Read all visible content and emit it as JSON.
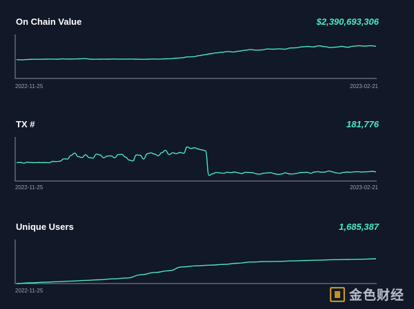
{
  "panels": [
    {
      "title": "On Chain Value",
      "value": "$2,390,693,306",
      "start_label": "2022-11-25",
      "end_label": "2023-02-21"
    },
    {
      "title": "TX #",
      "value": "181,776",
      "start_label": "2022-11-25",
      "end_label": "2023-02-21"
    },
    {
      "title": "Unique Users",
      "value": "1,685,387",
      "start_label": "2022-11-25",
      "end_label": ""
    }
  ],
  "watermark": {
    "text": "金色财经"
  },
  "colors": {
    "line": "#4ae8c6",
    "background": "#111827",
    "axis": "#8a909c"
  },
  "chart_data": [
    {
      "type": "line",
      "title": "On Chain Value",
      "x_start": "2022-11-25",
      "x_end": "2023-02-21",
      "grid": false,
      "values": [
        44,
        43.5,
        44.5,
        45,
        44.8,
        45.2,
        45.5,
        45,
        45.8,
        45.5,
        45.6,
        45.9,
        46.5,
        45.2,
        45,
        45.4,
        45.2,
        45.6,
        45.3,
        45.4,
        45.5,
        45.1,
        44.8,
        45.2,
        45.6,
        45.4,
        46,
        46.3,
        47.5,
        48.5,
        50.5,
        51,
        53.5,
        55.5,
        58,
        60,
        61.5,
        63,
        62,
        64,
        66,
        67.5,
        66.5,
        67,
        69,
        68.5,
        69.5,
        68.5,
        71.5,
        72,
        74,
        75,
        74,
        76.5,
        74.5,
        72.5,
        73.5,
        75,
        73,
        75.5,
        76.8,
        76,
        76.8,
        75.5
      ],
      "ylim": [
        0,
        100
      ]
    },
    {
      "type": "line",
      "title": "TX #",
      "x_start": "2022-11-25",
      "x_end": "2023-02-21",
      "grid": false,
      "values": [
        43,
        43.5,
        42,
        44,
        43.2,
        43,
        43.6,
        43.1,
        43.2,
        42.8,
        46,
        45.5,
        46.5,
        52,
        51.5,
        60,
        65.5,
        57,
        55,
        61.5,
        55,
        53.5,
        63,
        61,
        54.5,
        58.5,
        59,
        54.5,
        62,
        62.5,
        56,
        49,
        47,
        61,
        60.5,
        51.5,
        64,
        66,
        63,
        59,
        66.5,
        72,
        62,
        66,
        64,
        67,
        65,
        80,
        76,
        78,
        75,
        73,
        71,
        13,
        17,
        20,
        19,
        18,
        20.5,
        19.5,
        21,
        19,
        17.5,
        20.5,
        20,
        19.5,
        17,
        16,
        18,
        19,
        19.5,
        17,
        15.5,
        16.5,
        19,
        17,
        16.5,
        17.5,
        19.5,
        20,
        20.5,
        18,
        21,
        22,
        20.5,
        21,
        23.5,
        21.5,
        19,
        18,
        20,
        21,
        20.5,
        21.5,
        22,
        21,
        21.5,
        22,
        22.5,
        21.5
      ],
      "ylim": [
        0,
        100
      ]
    },
    {
      "type": "line",
      "title": "Unique Users",
      "x_start": "2022-11-25",
      "x_end": "",
      "grid": false,
      "values": [
        0,
        1.6,
        3,
        4.4,
        5.8,
        7.4,
        8.8,
        11,
        13,
        20.5,
        26,
        30,
        39,
        41.5,
        43,
        44.8,
        47.5,
        50.5,
        51.5,
        52,
        53,
        54,
        55,
        56,
        56.5,
        57,
        58
      ],
      "ylim": [
        0,
        100
      ]
    }
  ]
}
